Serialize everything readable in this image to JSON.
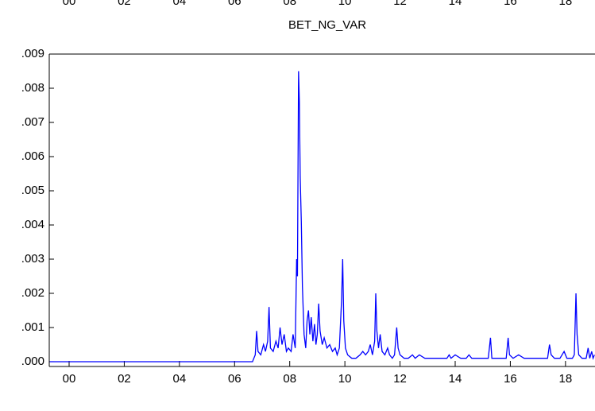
{
  "clipped_axis_labels": [
    "00",
    "02",
    "04",
    "06",
    "08",
    "10",
    "12",
    "14",
    "16",
    "18"
  ],
  "chart_data": {
    "type": "line",
    "title": "BET_NG_VAR",
    "xlim": [
      1999.28,
      2019.07
    ],
    "ylim": [
      -0.00014,
      0.009
    ],
    "xticks": [
      {
        "value": 2000,
        "label": "00"
      },
      {
        "value": 2002,
        "label": "02"
      },
      {
        "value": 2004,
        "label": "04"
      },
      {
        "value": 2006,
        "label": "06"
      },
      {
        "value": 2008,
        "label": "08"
      },
      {
        "value": 2010,
        "label": "10"
      },
      {
        "value": 2012,
        "label": "12"
      },
      {
        "value": 2014,
        "label": "14"
      },
      {
        "value": 2016,
        "label": "16"
      },
      {
        "value": 2018,
        "label": "18"
      }
    ],
    "yticks": [
      {
        "value": 0,
        "label": ".000"
      },
      {
        "value": 0.001,
        "label": ".001"
      },
      {
        "value": 0.002,
        "label": ".002"
      },
      {
        "value": 0.003,
        "label": ".003"
      },
      {
        "value": 0.004,
        "label": ".004"
      },
      {
        "value": 0.005,
        "label": ".005"
      },
      {
        "value": 0.006,
        "label": ".006"
      },
      {
        "value": 0.007,
        "label": ".007"
      },
      {
        "value": 0.008,
        "label": ".008"
      },
      {
        "value": 0.009,
        "label": ".009"
      }
    ],
    "color": "#0000ff",
    "x": [
      1999.3,
      2006.65,
      2006.7,
      2006.75,
      2006.8,
      2006.85,
      2006.95,
      2007.05,
      2007.12,
      2007.2,
      2007.25,
      2007.3,
      2007.4,
      2007.5,
      2007.58,
      2007.65,
      2007.72,
      2007.8,
      2007.88,
      2007.95,
      2008.05,
      2008.12,
      2008.2,
      2008.25,
      2008.28,
      2008.32,
      2008.35,
      2008.38,
      2008.42,
      2008.46,
      2008.52,
      2008.58,
      2008.63,
      2008.68,
      2008.73,
      2008.78,
      2008.84,
      2008.9,
      2008.95,
      2009.0,
      2009.05,
      2009.1,
      2009.18,
      2009.25,
      2009.35,
      2009.45,
      2009.55,
      2009.65,
      2009.72,
      2009.8,
      2009.88,
      2009.92,
      2009.96,
      2010.02,
      2010.1,
      2010.25,
      2010.4,
      2010.55,
      2010.65,
      2010.75,
      2010.85,
      2010.92,
      2011.0,
      2011.08,
      2011.12,
      2011.16,
      2011.22,
      2011.28,
      2011.35,
      2011.45,
      2011.55,
      2011.62,
      2011.72,
      2011.8,
      2011.88,
      2011.93,
      2012.0,
      2012.15,
      2012.3,
      2012.45,
      2012.55,
      2012.7,
      2012.9,
      2013.1,
      2013.3,
      2013.5,
      2013.7,
      2013.78,
      2013.85,
      2014.0,
      2014.2,
      2014.4,
      2014.5,
      2014.6,
      2014.8,
      2015.0,
      2015.2,
      2015.28,
      2015.33,
      2015.5,
      2015.7,
      2015.85,
      2015.92,
      2015.97,
      2016.1,
      2016.3,
      2016.5,
      2016.8,
      2017.0,
      2017.2,
      2017.35,
      2017.42,
      2017.48,
      2017.6,
      2017.8,
      2017.95,
      2018.05,
      2018.25,
      2018.32,
      2018.38,
      2018.42,
      2018.48,
      2018.6,
      2018.75,
      2018.82,
      2018.88,
      2018.95,
      2019.0,
      2019.05
    ],
    "values": [
      0,
      0,
      0.0001,
      0.0002,
      0.0009,
      0.0003,
      0.0002,
      0.0005,
      0.0003,
      0.0006,
      0.0016,
      0.0004,
      0.0003,
      0.0006,
      0.0004,
      0.001,
      0.0005,
      0.0008,
      0.0003,
      0.0004,
      0.0003,
      0.0008,
      0.0004,
      0.003,
      0.0025,
      0.0085,
      0.0076,
      0.0054,
      0.0041,
      0.0022,
      0.0008,
      0.0004,
      0.0012,
      0.0015,
      0.0008,
      0.0013,
      0.0006,
      0.0011,
      0.0005,
      0.0008,
      0.0017,
      0.0009,
      0.0005,
      0.0007,
      0.0004,
      0.0005,
      0.0003,
      0.0004,
      0.0002,
      0.0004,
      0.0018,
      0.003,
      0.0012,
      0.0004,
      0.0002,
      0.0001,
      0.0001,
      0.0002,
      0.0003,
      0.0002,
      0.0003,
      0.0005,
      0.0002,
      0.0006,
      0.002,
      0.0009,
      0.0004,
      0.0008,
      0.0003,
      0.0002,
      0.0004,
      0.0002,
      0.0001,
      0.0002,
      0.001,
      0.0004,
      0.0002,
      0.0001,
      0.0001,
      0.0002,
      0.0001,
      0.0002,
      0.0001,
      0.0001,
      0.0001,
      0.0001,
      0.0001,
      0.0002,
      0.0001,
      0.0002,
      0.0001,
      0.0001,
      0.0002,
      0.0001,
      0.0001,
      0.0001,
      0.0001,
      0.0007,
      0.0001,
      0.0001,
      0.0001,
      0.0001,
      0.0007,
      0.0002,
      0.0001,
      0.0002,
      0.0001,
      0.0001,
      0.0001,
      0.0001,
      0.0001,
      0.0005,
      0.0002,
      0.0001,
      0.0001,
      0.0003,
      0.0001,
      0.0001,
      0.0002,
      0.002,
      0.0008,
      0.0002,
      0.0001,
      0.0001,
      0.0004,
      0.0001,
      0.0003,
      0.0001,
      0.0002
    ]
  }
}
